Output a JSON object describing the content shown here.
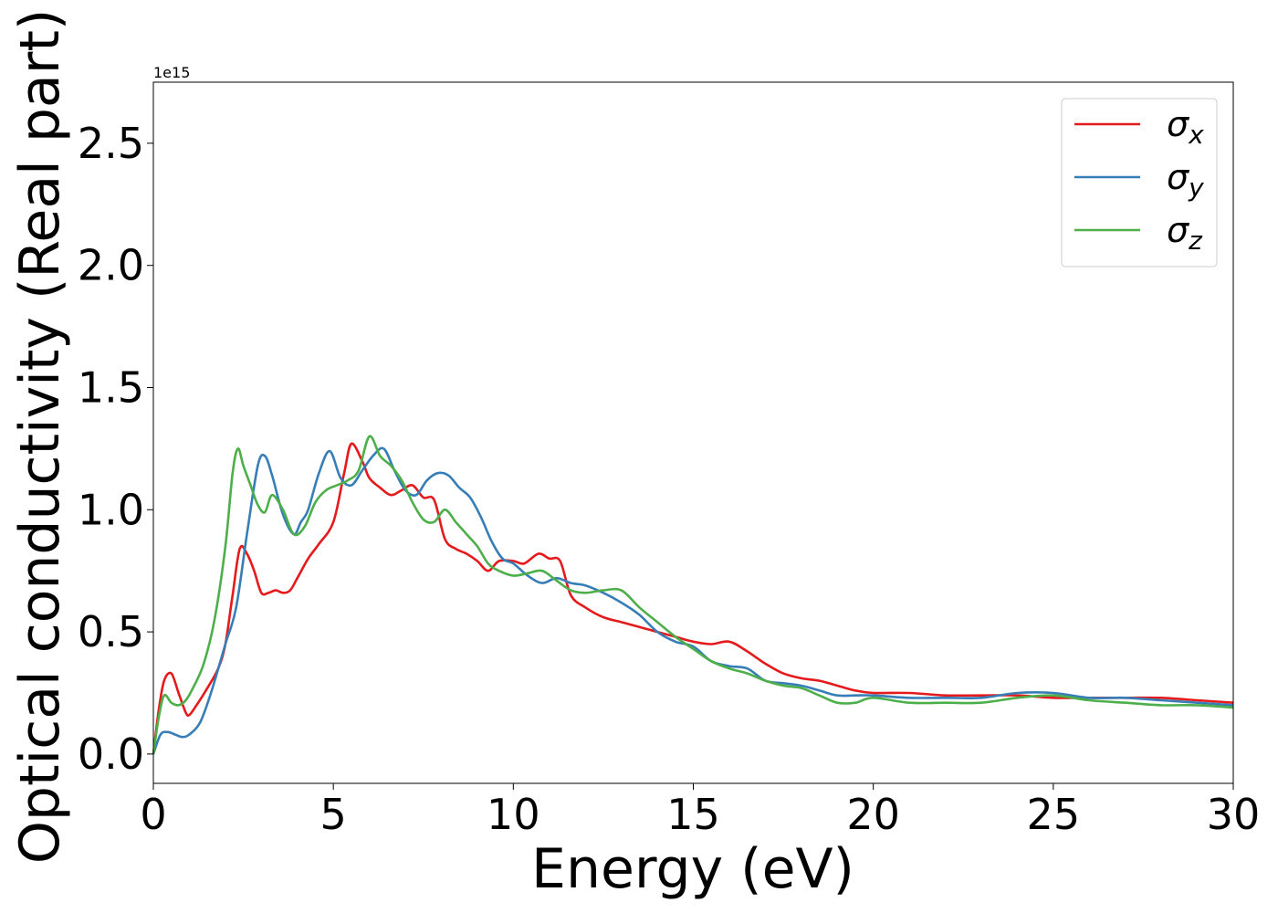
{
  "chart_data": {
    "type": "line",
    "xlabel": "Energy (eV)",
    "ylabel": "Optical conductivity (Real part)",
    "offset_text": "1e15",
    "xlim": [
      0,
      30
    ],
    "ylim": [
      -0.12,
      2.75
    ],
    "xticks": [
      0,
      5,
      10,
      15,
      20,
      25,
      30
    ],
    "xtick_labels": [
      "0",
      "5",
      "10",
      "15",
      "20",
      "25",
      "30"
    ],
    "yticks": [
      0.0,
      0.5,
      1.0,
      1.5,
      2.0,
      2.5
    ],
    "ytick_labels": [
      "0.0",
      "0.5",
      "1.0",
      "1.5",
      "2.0",
      "2.5"
    ],
    "grid": false,
    "legend_position": "top-right",
    "series": [
      {
        "name": "σx",
        "legend_base": "σ",
        "legend_sub": "x",
        "color": "#e41a1c",
        "x": [
          0,
          0.15,
          0.3,
          0.5,
          0.7,
          0.9,
          1.0,
          1.2,
          1.5,
          1.8,
          2.0,
          2.2,
          2.4,
          2.6,
          2.8,
          3.0,
          3.2,
          3.4,
          3.6,
          3.8,
          4.0,
          4.3,
          4.6,
          5.0,
          5.3,
          5.5,
          5.8,
          6.0,
          6.3,
          6.6,
          6.9,
          7.2,
          7.5,
          7.8,
          8.1,
          8.4,
          8.7,
          9.0,
          9.3,
          9.6,
          10.0,
          10.3,
          10.7,
          11.0,
          11.3,
          11.6,
          12.0,
          12.5,
          13.0,
          13.5,
          14.0,
          14.5,
          15.0,
          15.5,
          16.0,
          16.5,
          17.0,
          17.5,
          18.0,
          18.5,
          19.0,
          19.5,
          20.0,
          21.0,
          22.0,
          23.0,
          24.0,
          25.0,
          26.0,
          27.0,
          28.0,
          29.0,
          30.0
        ],
        "y": [
          0.0,
          0.18,
          0.3,
          0.33,
          0.25,
          0.17,
          0.16,
          0.2,
          0.27,
          0.35,
          0.45,
          0.65,
          0.84,
          0.82,
          0.75,
          0.66,
          0.66,
          0.67,
          0.66,
          0.67,
          0.72,
          0.8,
          0.86,
          0.95,
          1.15,
          1.27,
          1.2,
          1.13,
          1.09,
          1.06,
          1.08,
          1.1,
          1.05,
          1.04,
          0.88,
          0.84,
          0.82,
          0.79,
          0.75,
          0.79,
          0.79,
          0.78,
          0.82,
          0.8,
          0.79,
          0.65,
          0.6,
          0.56,
          0.54,
          0.52,
          0.5,
          0.48,
          0.46,
          0.45,
          0.46,
          0.42,
          0.37,
          0.33,
          0.31,
          0.3,
          0.28,
          0.26,
          0.25,
          0.25,
          0.24,
          0.24,
          0.24,
          0.23,
          0.23,
          0.23,
          0.23,
          0.22,
          0.21
        ]
      },
      {
        "name": "σy",
        "legend_base": "σ",
        "legend_sub": "y",
        "color": "#377eb8",
        "x": [
          0,
          0.2,
          0.4,
          0.6,
          0.8,
          1.0,
          1.3,
          1.6,
          2.0,
          2.3,
          2.6,
          2.9,
          3.1,
          3.3,
          3.6,
          3.9,
          4.1,
          4.3,
          4.6,
          4.9,
          5.2,
          5.5,
          5.8,
          6.1,
          6.4,
          6.7,
          7.0,
          7.3,
          7.6,
          7.9,
          8.2,
          8.5,
          8.8,
          9.1,
          9.4,
          9.7,
          10.0,
          10.4,
          10.8,
          11.2,
          11.6,
          12.0,
          12.5,
          13.0,
          13.5,
          14.0,
          14.5,
          15.0,
          15.5,
          16.0,
          16.5,
          17.0,
          17.5,
          18.0,
          18.5,
          19.0,
          19.5,
          20.0,
          21.0,
          22.0,
          23.0,
          24.0,
          25.0,
          26.0,
          27.0,
          28.0,
          29.0,
          30.0
        ],
        "y": [
          0.0,
          0.08,
          0.09,
          0.08,
          0.07,
          0.08,
          0.13,
          0.25,
          0.45,
          0.6,
          0.9,
          1.18,
          1.22,
          1.14,
          0.98,
          0.9,
          0.95,
          1.0,
          1.15,
          1.24,
          1.13,
          1.1,
          1.16,
          1.22,
          1.25,
          1.16,
          1.08,
          1.06,
          1.12,
          1.15,
          1.14,
          1.09,
          1.05,
          0.97,
          0.87,
          0.8,
          0.78,
          0.73,
          0.7,
          0.72,
          0.7,
          0.69,
          0.66,
          0.62,
          0.57,
          0.5,
          0.46,
          0.44,
          0.38,
          0.36,
          0.35,
          0.3,
          0.29,
          0.28,
          0.26,
          0.24,
          0.24,
          0.24,
          0.23,
          0.23,
          0.23,
          0.25,
          0.25,
          0.23,
          0.23,
          0.22,
          0.21,
          0.2
        ]
      },
      {
        "name": "σz",
        "legend_base": "σ",
        "legend_sub": "z",
        "color": "#4daf4a",
        "x": [
          0,
          0.15,
          0.3,
          0.5,
          0.7,
          0.9,
          1.1,
          1.4,
          1.7,
          2.0,
          2.2,
          2.35,
          2.5,
          2.7,
          2.9,
          3.1,
          3.3,
          3.6,
          3.9,
          4.2,
          4.5,
          4.8,
          5.1,
          5.4,
          5.7,
          6.0,
          6.3,
          6.6,
          6.9,
          7.2,
          7.5,
          7.8,
          8.1,
          8.4,
          8.7,
          9.0,
          9.3,
          9.6,
          10.0,
          10.4,
          10.8,
          11.2,
          11.6,
          12.0,
          12.5,
          13.0,
          13.5,
          14.0,
          14.5,
          15.0,
          15.5,
          16.0,
          16.5,
          17.0,
          17.5,
          18.0,
          18.5,
          19.0,
          19.5,
          20.0,
          21.0,
          22.0,
          23.0,
          24.0,
          25.0,
          26.0,
          27.0,
          28.0,
          29.0,
          30.0
        ],
        "y": [
          0.0,
          0.15,
          0.24,
          0.21,
          0.2,
          0.22,
          0.27,
          0.37,
          0.55,
          0.85,
          1.15,
          1.25,
          1.18,
          1.1,
          1.02,
          0.99,
          1.06,
          1.0,
          0.9,
          0.93,
          1.03,
          1.08,
          1.1,
          1.12,
          1.16,
          1.3,
          1.22,
          1.18,
          1.12,
          1.03,
          0.96,
          0.95,
          1.0,
          0.95,
          0.9,
          0.85,
          0.78,
          0.75,
          0.73,
          0.74,
          0.75,
          0.71,
          0.67,
          0.66,
          0.67,
          0.67,
          0.6,
          0.54,
          0.48,
          0.43,
          0.38,
          0.35,
          0.33,
          0.3,
          0.28,
          0.27,
          0.24,
          0.21,
          0.21,
          0.23,
          0.21,
          0.21,
          0.21,
          0.23,
          0.24,
          0.22,
          0.21,
          0.2,
          0.2,
          0.19
        ]
      }
    ]
  }
}
